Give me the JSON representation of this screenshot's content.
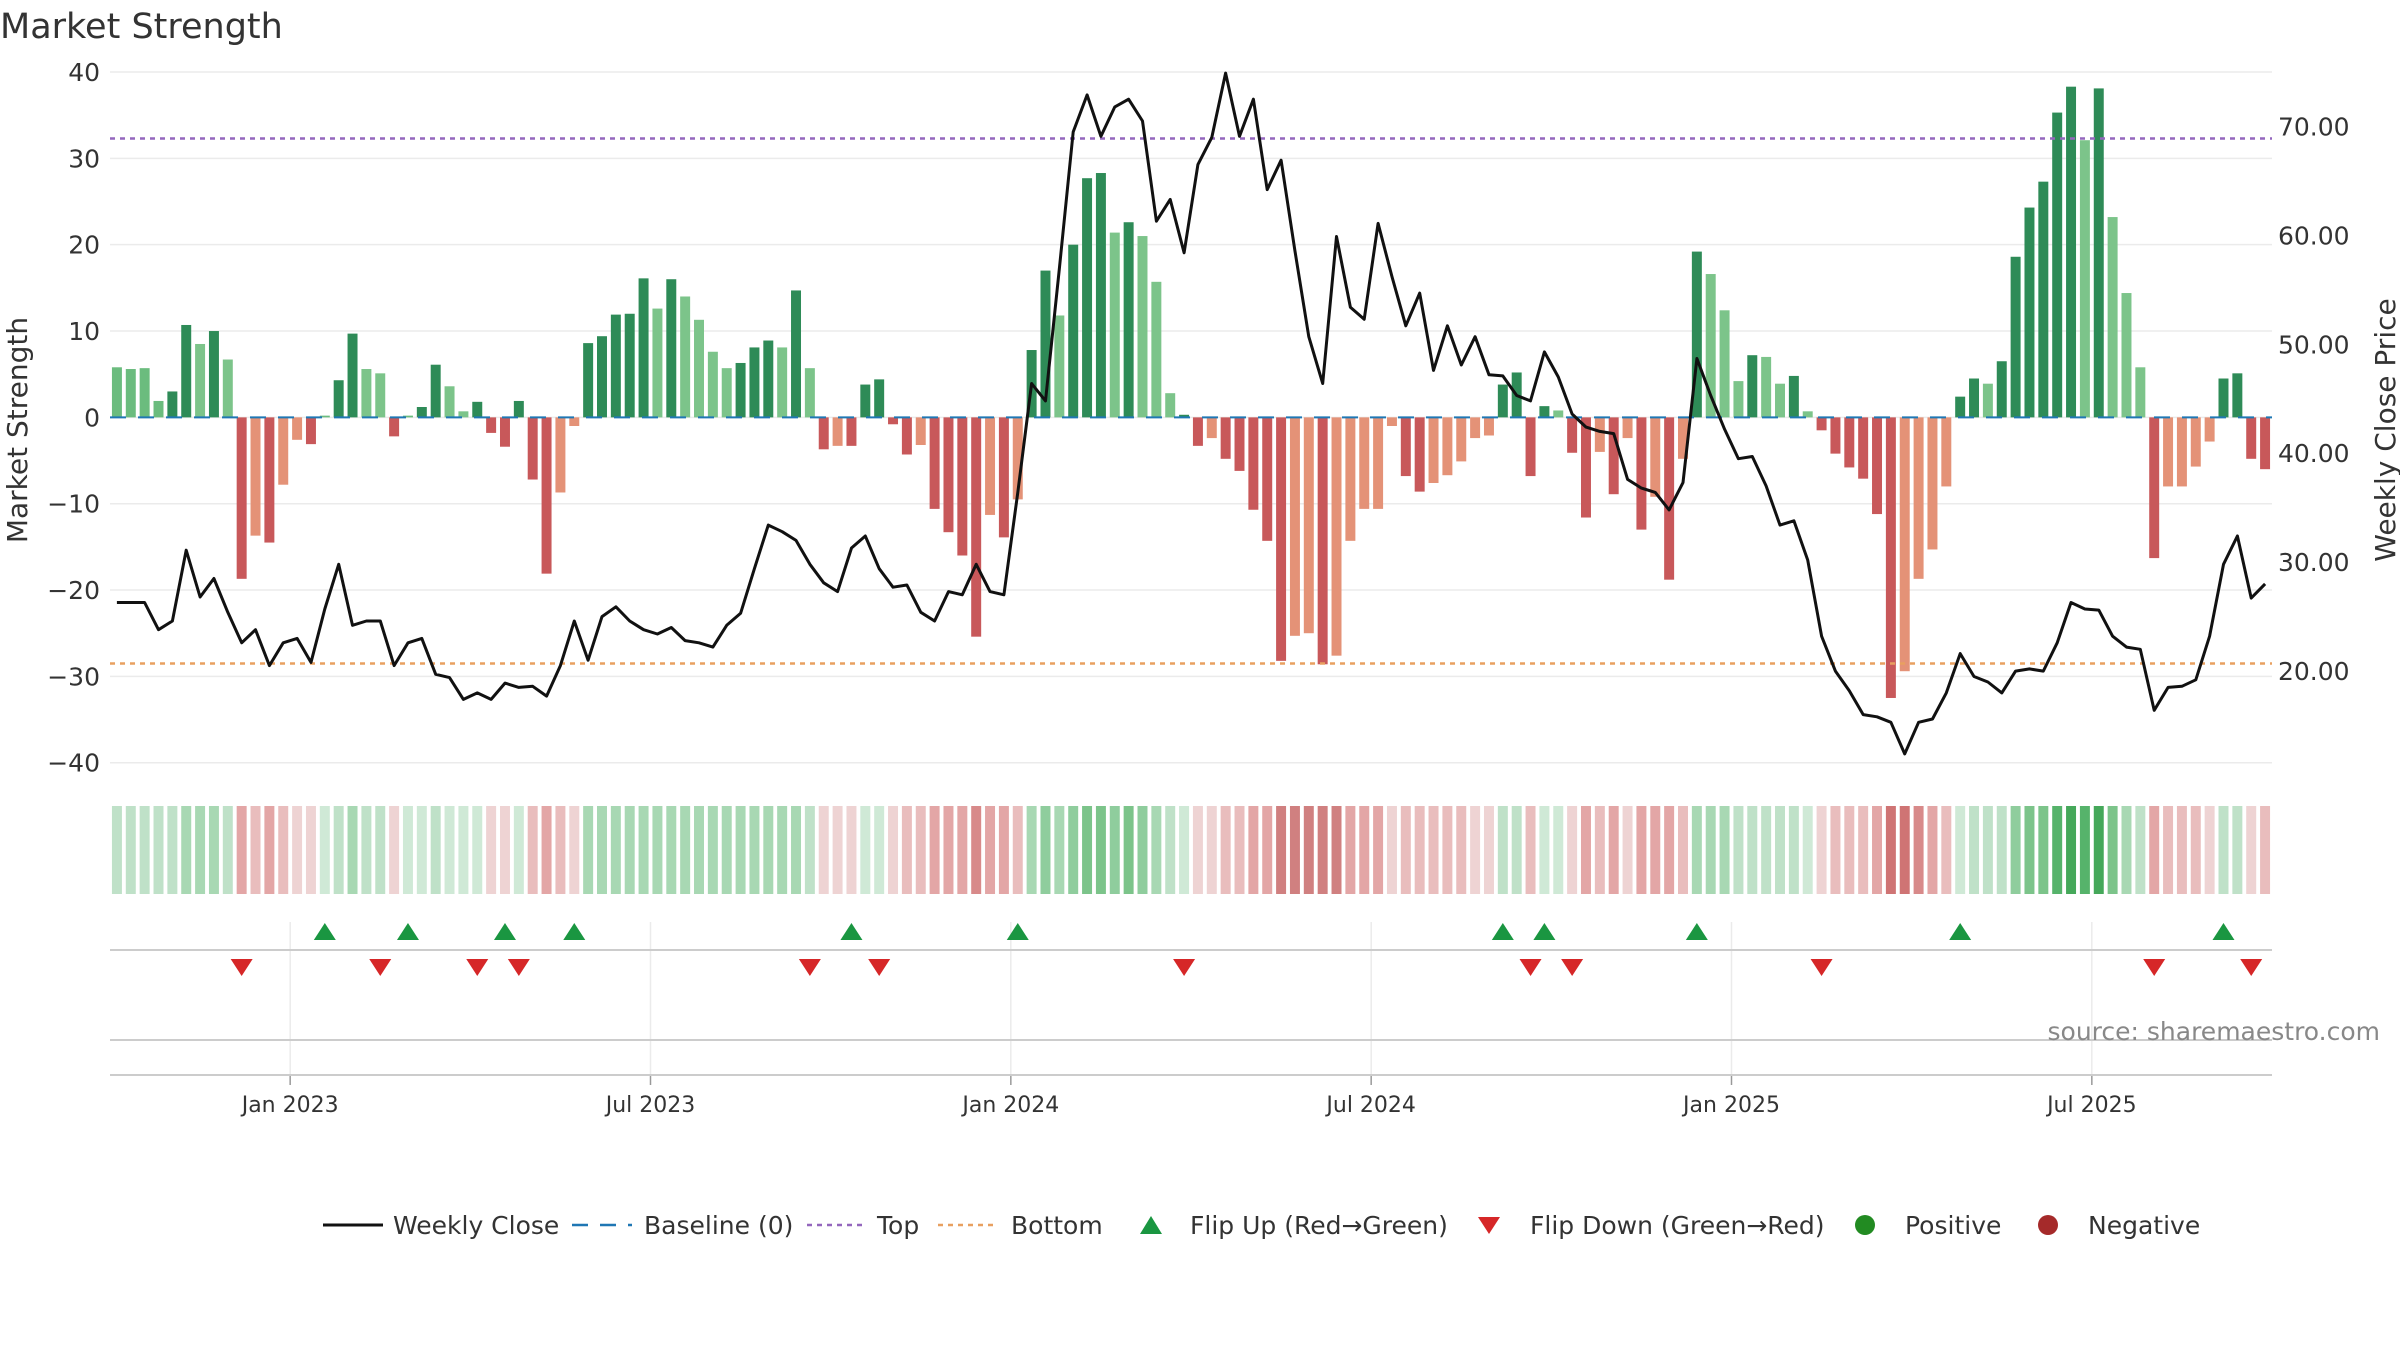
{
  "chart_data": {
    "type": "bar",
    "title": "Market Strength",
    "ylabel_left": "Market Strength",
    "ylabel_right": "Weekly Close Price",
    "ylim_left": [
      -42,
      40
    ],
    "ylim_right": [
      10,
      75
    ],
    "yticks_left": [
      "40",
      "30",
      "20",
      "10",
      "0",
      "−10",
      "−20",
      "−30",
      "−40"
    ],
    "yticks_left_values": [
      40,
      30,
      20,
      10,
      0,
      -10,
      -20,
      -30,
      -40
    ],
    "yticks_right": [
      "70.00",
      "60.00",
      "50.00",
      "40.00",
      "30.00",
      "20.00"
    ],
    "yticks_right_values": [
      70,
      60,
      50,
      40,
      30,
      20
    ],
    "xticks": [
      "Jan 2023",
      "Jul 2023",
      "Jan 2024",
      "Jul 2024",
      "Jan 2025",
      "Jul 2025"
    ],
    "xticks_week_index": [
      13,
      39,
      65,
      91,
      117,
      143
    ],
    "top_level": 32.3,
    "bottom_level": -28.5,
    "strength": [
      5.8,
      5.6,
      5.7,
      1.9,
      3.0,
      10.7,
      8.5,
      10.0,
      6.7,
      -18.7,
      -13.7,
      -14.5,
      -7.8,
      -2.6,
      -3.1,
      0.2,
      4.3,
      9.7,
      5.6,
      5.1,
      -2.2,
      0.2,
      1.2,
      6.1,
      3.6,
      0.7,
      1.8,
      -1.8,
      -3.4,
      1.9,
      -7.2,
      -18.1,
      -8.7,
      -1.0,
      8.6,
      9.4,
      11.9,
      12.0,
      16.1,
      12.6,
      16.0,
      14.0,
      11.3,
      7.6,
      5.7,
      6.3,
      8.1,
      8.9,
      8.1,
      14.7,
      5.7,
      -3.7,
      -3.3,
      -3.3,
      3.8,
      4.4,
      -0.8,
      -4.3,
      -3.2,
      -10.6,
      -13.3,
      -16.0,
      -25.4,
      -11.3,
      -13.9,
      -9.5,
      7.8,
      17.0,
      11.8,
      20.0,
      27.7,
      28.3,
      21.4,
      22.6,
      21.0,
      15.7,
      2.8,
      0.3,
      -3.3,
      -2.4,
      -4.8,
      -6.2,
      -10.7,
      -14.3,
      -28.2,
      -25.3,
      -25.0,
      -28.6,
      -27.6,
      -14.3,
      -10.6,
      -10.6,
      -1.0,
      -6.8,
      -8.6,
      -7.6,
      -6.7,
      -5.1,
      -2.4,
      -2.1,
      3.8,
      5.2,
      -6.8,
      1.3,
      0.8,
      -4.1,
      -11.6,
      -4.0,
      -8.9,
      -2.4,
      -13.0,
      -9.2,
      -18.8,
      -4.8,
      19.2,
      16.6,
      12.4,
      4.2,
      7.2,
      7.0,
      3.9,
      4.8,
      0.7,
      -1.5,
      -4.2,
      -5.8,
      -7.1,
      -11.2,
      -32.5,
      -29.4,
      -18.7,
      -15.3,
      -8.0,
      2.4,
      4.5,
      3.9,
      6.5,
      18.6,
      24.3,
      27.3,
      35.3,
      38.3,
      32.1,
      38.1,
      23.2,
      14.4,
      5.8,
      -16.3,
      -8.0,
      -8.0,
      -5.7,
      -2.8,
      4.5,
      5.1,
      -4.8,
      -6.0
    ],
    "bar_colors": [
      "#6bbc7e",
      "#6bbc7e",
      "#6bbc7e",
      "#6bbc7e",
      "#2e8b57",
      "#2e8b57",
      "#7cc48a",
      "#2e8b57",
      "#7cc48a",
      "#c8585a",
      "#e49277",
      "#c8585a",
      "#e49277",
      "#e49277",
      "#c8585a",
      "#6bbc7e",
      "#2e8b57",
      "#2e8b57",
      "#7cc48a",
      "#7cc48a",
      "#c8585a",
      "#6bbc7e",
      "#2e8b57",
      "#2e8b57",
      "#7cc48a",
      "#7cc48a",
      "#2e8b57",
      "#c8585a",
      "#c8585a",
      "#2e8b57",
      "#c8585a",
      "#c8585a",
      "#e49277",
      "#e49277",
      "#2e8b57",
      "#2e8b57",
      "#2e8b57",
      "#2e8b57",
      "#2e8b57",
      "#7cc48a",
      "#2e8b57",
      "#7cc48a",
      "#7cc48a",
      "#7cc48a",
      "#7cc48a",
      "#2e8b57",
      "#2e8b57",
      "#2e8b57",
      "#7cc48a",
      "#2e8b57",
      "#7cc48a",
      "#c8585a",
      "#e49277",
      "#c8585a",
      "#2e8b57",
      "#2e8b57",
      "#c8585a",
      "#c8585a",
      "#e49277",
      "#c8585a",
      "#c8585a",
      "#c8585a",
      "#c8585a",
      "#e49277",
      "#c8585a",
      "#e49277",
      "#2e8b57",
      "#2e8b57",
      "#7cc48a",
      "#2e8b57",
      "#2e8b57",
      "#2e8b57",
      "#7cc48a",
      "#2e8b57",
      "#7cc48a",
      "#7cc48a",
      "#7cc48a",
      "#2e8b57",
      "#c8585a",
      "#e49277",
      "#c8585a",
      "#c8585a",
      "#c8585a",
      "#c8585a",
      "#c8585a",
      "#e49277",
      "#e49277",
      "#c8585a",
      "#e49277",
      "#e49277",
      "#e49277",
      "#e49277",
      "#e49277",
      "#c8585a",
      "#c8585a",
      "#e49277",
      "#e49277",
      "#e49277",
      "#e49277",
      "#e49277",
      "#2e8b57",
      "#2e8b57",
      "#c8585a",
      "#2e8b57",
      "#7cc48a",
      "#c8585a",
      "#c8585a",
      "#e49277",
      "#c8585a",
      "#e49277",
      "#c8585a",
      "#e49277",
      "#c8585a",
      "#e49277",
      "#2e8b57",
      "#7cc48a",
      "#7cc48a",
      "#7cc48a",
      "#2e8b57",
      "#7cc48a",
      "#7cc48a",
      "#2e8b57",
      "#7cc48a",
      "#c8585a",
      "#c8585a",
      "#c8585a",
      "#c8585a",
      "#c8585a",
      "#c8585a",
      "#e49277",
      "#e49277",
      "#e49277",
      "#e49277",
      "#2e8b57",
      "#2e8b57",
      "#7cc48a",
      "#2e8b57",
      "#2e8b57",
      "#2e8b57",
      "#2e8b57",
      "#2e8b57",
      "#2e8b57",
      "#7cc48a",
      "#2e8b57",
      "#7cc48a",
      "#7cc48a",
      "#7cc48a",
      "#c8585a",
      "#e49277",
      "#e49277",
      "#e49277",
      "#e49277",
      "#2e8b57",
      "#2e8b57",
      "#c8585a",
      "#c8585a"
    ],
    "weekly_close": [
      26.3,
      26.3,
      26.3,
      23.8,
      24.6,
      31.1,
      26.8,
      28.5,
      25.4,
      22.6,
      23.8,
      20.5,
      22.6,
      23.0,
      20.8,
      25.7,
      29.8,
      24.2,
      24.6,
      24.6,
      20.5,
      22.6,
      23.0,
      19.7,
      19.4,
      17.4,
      18.0,
      17.4,
      18.9,
      18.5,
      18.6,
      17.7,
      20.5,
      24.6,
      21.0,
      25.0,
      25.9,
      24.6,
      23.8,
      23.4,
      24.0,
      22.8,
      22.6,
      22.2,
      24.2,
      25.3,
      29.4,
      33.4,
      32.8,
      32.0,
      29.8,
      28.1,
      27.3,
      31.3,
      32.4,
      29.4,
      27.7,
      27.9,
      25.4,
      24.6,
      27.3,
      27.0,
      29.8,
      27.3,
      27.0,
      36.4,
      46.4,
      44.8,
      56.9,
      69.5,
      72.9,
      69.1,
      71.8,
      72.5,
      70.5,
      61.3,
      63.3,
      58.4,
      66.5,
      69.0,
      74.9,
      69.1,
      72.5,
      64.2,
      66.9,
      58.6,
      50.7,
      46.4,
      59.9,
      53.4,
      52.3,
      61.1,
      56.2,
      51.7,
      54.7,
      47.6,
      51.7,
      48.1,
      50.7,
      47.2,
      47.1,
      45.3,
      44.8,
      49.3,
      47.0,
      43.6,
      42.4,
      42.0,
      41.8,
      37.6,
      36.8,
      36.4,
      34.8,
      37.3,
      48.7,
      45.3,
      42.2,
      39.5,
      39.7,
      37.0,
      33.4,
      33.8,
      30.2,
      23.2,
      20.0,
      18.2,
      16.0,
      15.8,
      15.3,
      12.4,
      15.3,
      15.6,
      18.0,
      21.6,
      19.5,
      19.0,
      18.0,
      20.0,
      20.2,
      20.0,
      22.6,
      26.3,
      25.7,
      25.6,
      23.2,
      22.2,
      22.0,
      16.4,
      18.5,
      18.6,
      19.2,
      23.2,
      29.8,
      32.4,
      26.7,
      28.0
    ],
    "heat_colors": [
      "#bfe1c8",
      "#bfe1c8",
      "#bfe1c8",
      "#bfe1c8",
      "#bfe1c8",
      "#a8d8b3",
      "#a8d8b3",
      "#a8d8b3",
      "#bfe1c8",
      "#e3a6a6",
      "#e9bdbd",
      "#e3a6a6",
      "#e9bdbd",
      "#eed3d3",
      "#eed3d3",
      "#cfe9d6",
      "#bfe1c8",
      "#a8d8b3",
      "#bfe1c8",
      "#bfe1c8",
      "#eed3d3",
      "#cfe9d6",
      "#cfe9d6",
      "#bfe1c8",
      "#cfe9d6",
      "#cfe9d6",
      "#cfe9d6",
      "#eed3d3",
      "#eed3d3",
      "#cfe9d6",
      "#e9bdbd",
      "#e3a6a6",
      "#e9bdbd",
      "#eed3d3",
      "#a8d8b3",
      "#a8d8b3",
      "#a8d8b3",
      "#a8d8b3",
      "#a8d8b3",
      "#a8d8b3",
      "#a8d8b3",
      "#a8d8b3",
      "#a8d8b3",
      "#a8d8b3",
      "#a8d8b3",
      "#a8d8b3",
      "#a8d8b3",
      "#a8d8b3",
      "#a8d8b3",
      "#a8d8b3",
      "#bfe1c8",
      "#eed3d3",
      "#eed3d3",
      "#eed3d3",
      "#cfe9d6",
      "#cfe9d6",
      "#eed3d3",
      "#e9bdbd",
      "#e9bdbd",
      "#e3a6a6",
      "#e3a6a6",
      "#e3a6a6",
      "#d88a8a",
      "#e3a6a6",
      "#e3a6a6",
      "#e9bdbd",
      "#a8d8b3",
      "#8fcd9d",
      "#a8d8b3",
      "#8fcd9d",
      "#7cc48a",
      "#7cc48a",
      "#8fcd9d",
      "#7cc48a",
      "#8fcd9d",
      "#a8d8b3",
      "#bfe1c8",
      "#cfe9d6",
      "#eed3d3",
      "#eed3d3",
      "#e9bdbd",
      "#e9bdbd",
      "#e3a6a6",
      "#e3a6a6",
      "#d08080",
      "#d08080",
      "#d08080",
      "#d08080",
      "#d08080",
      "#e3a6a6",
      "#e3a6a6",
      "#e3a6a6",
      "#eed3d3",
      "#e9bdbd",
      "#e9bdbd",
      "#e9bdbd",
      "#e9bdbd",
      "#e9bdbd",
      "#eed3d3",
      "#eed3d3",
      "#bfe1c8",
      "#bfe1c8",
      "#e9bdbd",
      "#cfe9d6",
      "#cfe9d6",
      "#eed3d3",
      "#e3a6a6",
      "#e9bdbd",
      "#e3a6a6",
      "#eed3d3",
      "#e3a6a6",
      "#e3a6a6",
      "#e3a6a6",
      "#e9bdbd",
      "#a8d8b3",
      "#a8d8b3",
      "#a8d8b3",
      "#bfe1c8",
      "#bfe1c8",
      "#bfe1c8",
      "#bfe1c8",
      "#bfe1c8",
      "#cfe9d6",
      "#eed3d3",
      "#e9bdbd",
      "#e9bdbd",
      "#e9bdbd",
      "#e3a6a6",
      "#cf7474",
      "#cf7474",
      "#d88a8a",
      "#e3a6a6",
      "#e9bdbd",
      "#cfe9d6",
      "#bfe1c8",
      "#bfe1c8",
      "#bfe1c8",
      "#8fcd9d",
      "#7cc48a",
      "#7cc48a",
      "#56b36b",
      "#45a85a",
      "#56b36b",
      "#45a85a",
      "#7cc48a",
      "#a8d8b3",
      "#bfe1c8",
      "#e3a6a6",
      "#e9bdbd",
      "#e9bdbd",
      "#e9bdbd",
      "#eed3d3",
      "#bfe1c8",
      "#bfe1c8",
      "#eed3d3",
      "#e9bdbd"
    ],
    "flip_up_weeks": [
      15,
      21,
      28,
      33,
      53,
      65,
      100,
      103,
      114,
      133,
      152
    ],
    "flip_down_weeks": [
      9,
      19,
      26,
      29,
      50,
      55,
      77,
      102,
      105,
      123,
      147,
      154
    ],
    "legend": [
      "Weekly Close",
      "Baseline (0)",
      "Top",
      "Bottom",
      "Flip Up (Red→Green)",
      "Flip Down (Green→Red)",
      "Positive",
      "Negative"
    ],
    "colors": {
      "strong_green": "#2e8b57",
      "light_green": "#7cc48a",
      "strong_red": "#c8585a",
      "light_red": "#e49277",
      "top_line": "#9467bd",
      "bottom_line": "#e8a060",
      "baseline": "#1f77b4",
      "flip_up": "#1a9641",
      "flip_down": "#d62728",
      "positive": "#228b22",
      "negative": "#a52a2a",
      "close_line": "#111111"
    },
    "source": "source: sharemaestro.com"
  }
}
